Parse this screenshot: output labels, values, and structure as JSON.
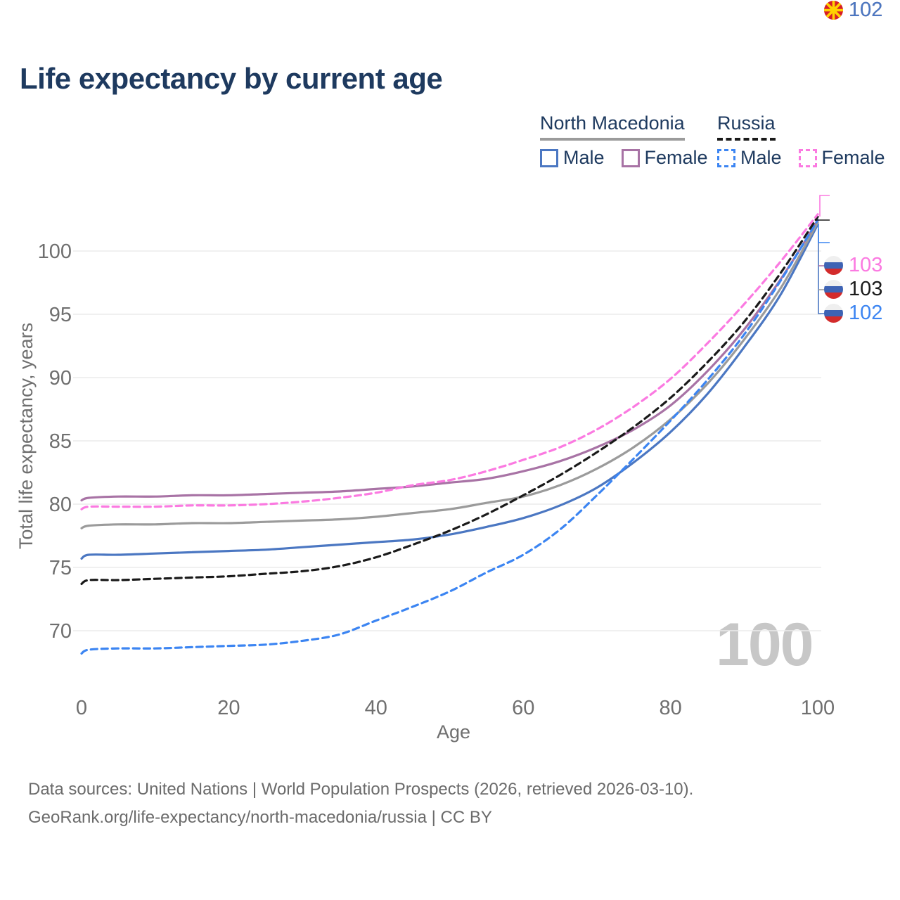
{
  "title": "Life expectancy by current age",
  "legend": {
    "groups": [
      {
        "label": "North Macedonia",
        "line_style": "solid",
        "color": "#9b9b9b",
        "items": [
          {
            "label": "Male",
            "color": "#4b77c2",
            "dashed": false
          },
          {
            "label": "Female",
            "color": "#a873a5",
            "dashed": false
          }
        ]
      },
      {
        "label": "Russia",
        "line_style": "dashed",
        "color": "#1a1a1a",
        "items": [
          {
            "label": "Male",
            "color": "#3c85f2",
            "dashed": true
          },
          {
            "label": "Female",
            "color": "#fb7ae1",
            "dashed": true
          }
        ]
      }
    ]
  },
  "chart_data": {
    "type": "line",
    "title": "Life expectancy by current age",
    "xlabel": "Age",
    "ylabel": "Total life expectancy, years",
    "x_ticks": [
      0,
      20,
      40,
      60,
      80,
      100
    ],
    "y_ticks": [
      70,
      75,
      80,
      85,
      90,
      95,
      100
    ],
    "xlim": [
      0,
      100
    ],
    "ylim": [
      67,
      104
    ],
    "grid": "horizontal",
    "legend_position": "top-right",
    "x": [
      0,
      1,
      5,
      10,
      15,
      20,
      25,
      30,
      35,
      40,
      45,
      50,
      55,
      60,
      65,
      70,
      75,
      80,
      85,
      90,
      95,
      100
    ],
    "series": [
      {
        "name": "North Macedonia Male",
        "country": "North Macedonia",
        "sex": "Male",
        "color": "#4b77c2",
        "dashed": false,
        "values": [
          75.7,
          76.0,
          76.0,
          76.1,
          76.2,
          76.3,
          76.4,
          76.6,
          76.8,
          77.0,
          77.2,
          77.6,
          78.2,
          78.9,
          79.9,
          81.3,
          83.3,
          85.7,
          88.7,
          92.4,
          96.6,
          102.1
        ]
      },
      {
        "name": "North Macedonia Female",
        "country": "North Macedonia",
        "sex": "Female",
        "color": "#a873a5",
        "dashed": false,
        "values": [
          80.3,
          80.5,
          80.6,
          80.6,
          80.7,
          80.7,
          80.8,
          80.9,
          81.0,
          81.2,
          81.4,
          81.7,
          82.0,
          82.6,
          83.4,
          84.5,
          85.9,
          87.8,
          90.5,
          93.8,
          97.8,
          102.4
        ]
      },
      {
        "name": "North Macedonia",
        "country": "North Macedonia",
        "sex": "Both",
        "color": "#9b9b9b",
        "dashed": false,
        "values": [
          78.1,
          78.3,
          78.4,
          78.4,
          78.5,
          78.5,
          78.6,
          78.7,
          78.8,
          79.0,
          79.3,
          79.6,
          80.1,
          80.6,
          81.5,
          82.8,
          84.5,
          86.7,
          89.5,
          93.0,
          97.1,
          102.25
        ]
      },
      {
        "name": "Russia Male",
        "country": "Russia",
        "sex": "Male",
        "color": "#3c85f2",
        "dashed": true,
        "values": [
          68.2,
          68.5,
          68.6,
          68.6,
          68.7,
          68.8,
          68.9,
          69.2,
          69.7,
          70.8,
          71.9,
          73.1,
          74.6,
          76.0,
          78.0,
          80.7,
          83.6,
          86.6,
          89.8,
          93.4,
          97.7,
          102.45
        ]
      },
      {
        "name": "Russia",
        "country": "Russia",
        "sex": "Both",
        "color": "#1a1a1a",
        "dashed": true,
        "values": [
          73.7,
          74.0,
          74.0,
          74.1,
          74.2,
          74.3,
          74.5,
          74.7,
          75.1,
          75.8,
          76.8,
          77.9,
          79.2,
          80.7,
          82.3,
          84.1,
          86.1,
          88.4,
          91.2,
          94.4,
          98.3,
          102.7
        ]
      },
      {
        "name": "Russia Female",
        "country": "Russia",
        "sex": "Female",
        "color": "#fb7ae1",
        "dashed": true,
        "values": [
          79.6,
          79.8,
          79.8,
          79.8,
          79.9,
          79.9,
          80.0,
          80.2,
          80.5,
          80.9,
          81.5,
          81.9,
          82.6,
          83.5,
          84.5,
          85.9,
          87.7,
          89.9,
          92.7,
          95.8,
          99.2,
          102.9
        ]
      }
    ]
  },
  "end_labels": [
    {
      "flag": "russia",
      "value": "103",
      "color": "#fb7ae1"
    },
    {
      "flag": "russia",
      "value": "103",
      "color": "#1a1a1a"
    },
    {
      "flag": "russia",
      "value": "102",
      "color": "#3c85f2"
    },
    {
      "flag": "north-macedonia",
      "value": "102",
      "color": "#a873a5"
    },
    {
      "flag": "north-macedonia",
      "value": "102",
      "color": "#9b9b9b"
    },
    {
      "flag": "north-macedonia",
      "value": "102",
      "color": "#4b77c2"
    }
  ],
  "watermark": "100",
  "footer": {
    "line1": "Data sources: United Nations | World Population Prospects (2026, retrieved 2026-03-10).",
    "line2": "GeoRank.org/life-expectancy/north-macedonia/russia | CC BY"
  }
}
